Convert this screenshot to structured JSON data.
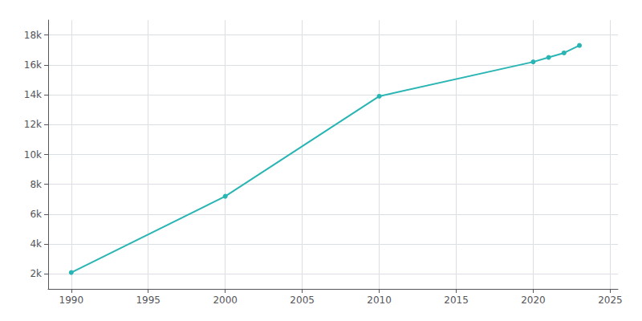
{
  "chart_data": {
    "type": "line",
    "x": [
      1990,
      2000,
      2010,
      2020,
      2021,
      2022,
      2023
    ],
    "values": [
      2100,
      7200,
      13900,
      16200,
      16500,
      16800,
      17300
    ],
    "color": "#2ab5b5",
    "marker": "circle",
    "xlim": [
      1988.5,
      2025.5
    ],
    "xticks": [
      1990,
      1995,
      2000,
      2005,
      2010,
      2015,
      2020,
      2025
    ],
    "ylim": [
      1000,
      19000
    ],
    "yticks": [
      {
        "value": 2000,
        "label": "2k"
      },
      {
        "value": 4000,
        "label": "4k"
      },
      {
        "value": 6000,
        "label": "6k"
      },
      {
        "value": 8000,
        "label": "8k"
      },
      {
        "value": 10000,
        "label": "10k"
      },
      {
        "value": 12000,
        "label": "12k"
      },
      {
        "value": 14000,
        "label": "14k"
      },
      {
        "value": 16000,
        "label": "16k"
      },
      {
        "value": 18000,
        "label": "18k"
      }
    ],
    "grid": true
  }
}
